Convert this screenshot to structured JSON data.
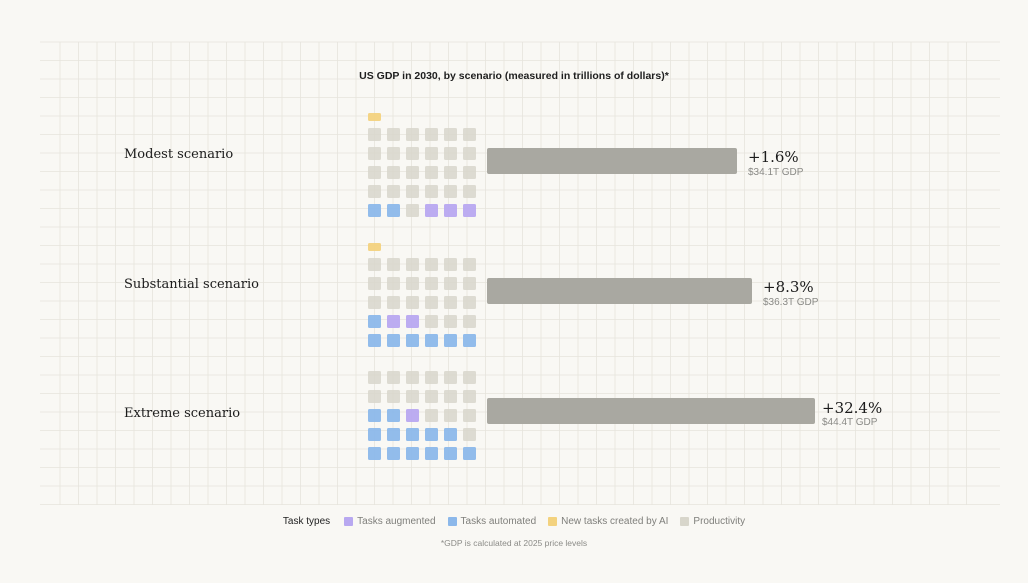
{
  "chart_data": {
    "type": "bar",
    "title": "US GDP in 2030, by scenario (measured in trillions of dollars)*",
    "categories": [
      "Modest scenario",
      "Substantial scenario",
      "Extreme scenario"
    ],
    "values": [
      1.6,
      8.3,
      32.4
    ],
    "value_labels": [
      "+1.6%",
      "+8.3%",
      "+32.4%"
    ],
    "gdp_labels": [
      "$34.1T GDP",
      "$36.3T GDP",
      "$44.4T GDP"
    ],
    "waffles": [
      {
        "rows": [
          [
            "new",
            null,
            null,
            null,
            null,
            null
          ],
          [
            "prod",
            "prod",
            "prod",
            "prod",
            "prod",
            "prod"
          ],
          [
            "prod",
            "prod",
            "prod",
            "prod",
            "prod",
            "prod"
          ],
          [
            "prod",
            "prod",
            "prod",
            "prod",
            "prod",
            "prod"
          ],
          [
            "prod",
            "prod",
            "prod",
            "prod",
            "prod",
            "prod"
          ],
          [
            "auto",
            "auto",
            "prod",
            "aug",
            "aug",
            "aug"
          ]
        ]
      },
      {
        "rows": [
          [
            "new",
            null,
            null,
            null,
            null,
            null
          ],
          [
            "prod",
            "prod",
            "prod",
            "prod",
            "prod",
            "prod"
          ],
          [
            "prod",
            "prod",
            "prod",
            "prod",
            "prod",
            "prod"
          ],
          [
            "prod",
            "prod",
            "prod",
            "prod",
            "prod",
            "prod"
          ],
          [
            "auto",
            "aug",
            "aug",
            "prod",
            "prod",
            "prod"
          ],
          [
            "auto",
            "auto",
            "auto",
            "auto",
            "auto",
            "auto"
          ]
        ]
      },
      {
        "rows": [
          [
            "prod",
            "prod",
            "prod",
            "prod",
            "prod",
            "prod"
          ],
          [
            "prod",
            "prod",
            "prod",
            "prod",
            "prod",
            "prod"
          ],
          [
            "auto",
            "auto",
            "aug",
            "prod",
            "prod",
            "prod"
          ],
          [
            "auto",
            "auto",
            "auto",
            "auto",
            "auto",
            "prod"
          ],
          [
            "auto",
            "auto",
            "auto",
            "auto",
            "auto",
            "auto"
          ]
        ]
      }
    ]
  },
  "legend": {
    "title": "Task types",
    "items": [
      {
        "key": "aug",
        "label": "Tasks augmented",
        "color": "#b8a8f0"
      },
      {
        "key": "auto",
        "label": "Tasks automated",
        "color": "#8cb8ea"
      },
      {
        "key": "new",
        "label": "New tasks created by AI",
        "color": "#f3d27e"
      },
      {
        "key": "prod",
        "label": "Productivity",
        "color": "#d8d6cb"
      }
    ]
  },
  "bar_color": "#a9a8a1",
  "footnote": "*GDP is calculated at 2025 price levels"
}
